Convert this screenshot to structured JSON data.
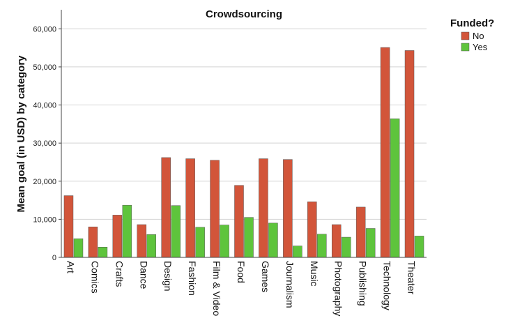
{
  "chart_data": {
    "type": "bar",
    "title": "Crowdsourcing",
    "xlabel": "",
    "ylabel": "Mean goal (in USD) by category",
    "ylim": [
      0,
      65000
    ],
    "yticks": [
      0,
      10000,
      20000,
      30000,
      40000,
      50000,
      60000
    ],
    "ytick_labels": [
      "0",
      "10,000",
      "20,000",
      "30,000",
      "40,000",
      "50,000",
      "60,000"
    ],
    "grid": true,
    "legend": {
      "title": "Funded?",
      "placement": "top-right"
    },
    "categories": [
      "Art",
      "Comics",
      "Crafts",
      "Dance",
      "Design",
      "Fashion",
      "Film & Video",
      "Food",
      "Games",
      "Journalism",
      "Music",
      "Photography",
      "Publishing",
      "Technology",
      "Theater"
    ],
    "series": [
      {
        "name": "No",
        "color": "#d2553a",
        "values": [
          16200,
          8000,
          11100,
          8600,
          26200,
          25900,
          25500,
          18900,
          25900,
          25700,
          14600,
          8600,
          13200,
          55100,
          54300
        ]
      },
      {
        "name": "Yes",
        "color": "#5ec43c",
        "values": [
          4900,
          2700,
          13700,
          6000,
          13600,
          7900,
          8500,
          10500,
          9000,
          3000,
          6100,
          5300,
          7600,
          36400,
          5600
        ]
      }
    ]
  }
}
